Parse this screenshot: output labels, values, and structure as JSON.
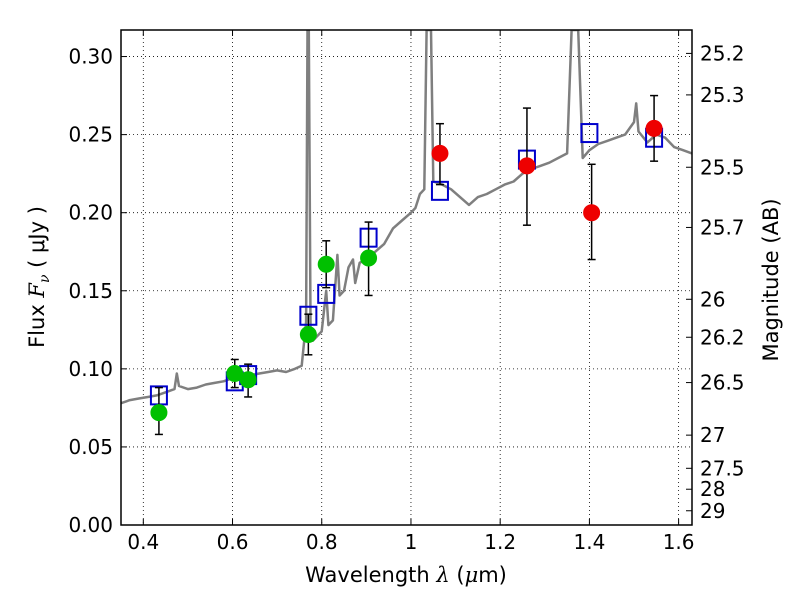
{
  "chart_data": {
    "type": "scatter",
    "xlabel": {
      "prefix": "Wavelength ",
      "var": "λ",
      "unit_open": " (",
      "unit_mu": "μ",
      "unit_rest": "m)"
    },
    "ylabel": {
      "prefix": "Flux ",
      "var": "F",
      "sub": "ν",
      "unit": " ( μJy )"
    },
    "y2label": "Magnitude (AB)",
    "xlim": [
      0.35,
      1.63
    ],
    "ylim": [
      0.0,
      0.317
    ],
    "grid": true,
    "x_ticks": [
      {
        "value": 0.4,
        "label": "0.4"
      },
      {
        "value": 0.6,
        "label": "0.6"
      },
      {
        "value": 0.8,
        "label": "0.8"
      },
      {
        "value": 1.0,
        "label": "1"
      },
      {
        "value": 1.2,
        "label": "1.2"
      },
      {
        "value": 1.4,
        "label": "1.4"
      },
      {
        "value": 1.6,
        "label": "1.6"
      }
    ],
    "y_ticks": [
      {
        "value": 0.0,
        "label": "0.00"
      },
      {
        "value": 0.05,
        "label": "0.05"
      },
      {
        "value": 0.1,
        "label": "0.10"
      },
      {
        "value": 0.15,
        "label": "0.15"
      },
      {
        "value": 0.2,
        "label": "0.20"
      },
      {
        "value": 0.25,
        "label": "0.25"
      },
      {
        "value": 0.3,
        "label": "0.30"
      }
    ],
    "mag_ticks": [
      {
        "mag": 25.2,
        "label": "25.2"
      },
      {
        "mag": 25.3,
        "label": "25.3"
      },
      {
        "mag": 25.5,
        "label": "25.5"
      },
      {
        "mag": 25.7,
        "label": "25.7"
      },
      {
        "mag": 26,
        "label": "26"
      },
      {
        "mag": 26.2,
        "label": "26.2"
      },
      {
        "mag": 26.5,
        "label": "26.5"
      },
      {
        "mag": 27,
        "label": "27"
      },
      {
        "mag": 27.5,
        "label": "27.5"
      },
      {
        "mag": 28,
        "label": "28"
      },
      {
        "mag": 29,
        "label": "29"
      }
    ],
    "series": [
      {
        "kind": "line",
        "color": "#7f7f7f",
        "points": [
          [
            0.35,
            0.078
          ],
          [
            0.37,
            0.08
          ],
          [
            0.39,
            0.081
          ],
          [
            0.41,
            0.082
          ],
          [
            0.43,
            0.083
          ],
          [
            0.45,
            0.085
          ],
          [
            0.47,
            0.087
          ],
          [
            0.475,
            0.097
          ],
          [
            0.48,
            0.089
          ],
          [
            0.5,
            0.087
          ],
          [
            0.52,
            0.088
          ],
          [
            0.54,
            0.09
          ],
          [
            0.56,
            0.091
          ],
          [
            0.58,
            0.092
          ],
          [
            0.6,
            0.094
          ],
          [
            0.62,
            0.095
          ],
          [
            0.64,
            0.096
          ],
          [
            0.66,
            0.097
          ],
          [
            0.68,
            0.098
          ],
          [
            0.7,
            0.099
          ],
          [
            0.72,
            0.098
          ],
          [
            0.74,
            0.1
          ],
          [
            0.755,
            0.102
          ],
          [
            0.765,
            0.13
          ],
          [
            0.768,
            0.317
          ],
          [
            0.771,
            0.317
          ],
          [
            0.775,
            0.12
          ],
          [
            0.78,
            0.118
          ],
          [
            0.8,
            0.124
          ],
          [
            0.81,
            0.15
          ],
          [
            0.815,
            0.128
          ],
          [
            0.825,
            0.131
          ],
          [
            0.835,
            0.173
          ],
          [
            0.84,
            0.147
          ],
          [
            0.85,
            0.15
          ],
          [
            0.86,
            0.165
          ],
          [
            0.87,
            0.17
          ],
          [
            0.875,
            0.155
          ],
          [
            0.885,
            0.168
          ],
          [
            0.9,
            0.17
          ],
          [
            0.92,
            0.175
          ],
          [
            0.94,
            0.18
          ],
          [
            0.96,
            0.19
          ],
          [
            0.98,
            0.195
          ],
          [
            1.0,
            0.2
          ],
          [
            1.01,
            0.203
          ],
          [
            1.02,
            0.212
          ],
          [
            1.03,
            0.215
          ],
          [
            1.035,
            0.317
          ],
          [
            1.045,
            0.317
          ],
          [
            1.05,
            0.22
          ],
          [
            1.07,
            0.218
          ],
          [
            1.09,
            0.215
          ],
          [
            1.11,
            0.21
          ],
          [
            1.13,
            0.205
          ],
          [
            1.15,
            0.21
          ],
          [
            1.17,
            0.212
          ],
          [
            1.19,
            0.215
          ],
          [
            1.21,
            0.218
          ],
          [
            1.23,
            0.22
          ],
          [
            1.25,
            0.225
          ],
          [
            1.27,
            0.228
          ],
          [
            1.29,
            0.23
          ],
          [
            1.31,
            0.232
          ],
          [
            1.33,
            0.235
          ],
          [
            1.35,
            0.238
          ],
          [
            1.36,
            0.317
          ],
          [
            1.375,
            0.317
          ],
          [
            1.385,
            0.235
          ],
          [
            1.4,
            0.24
          ],
          [
            1.42,
            0.244
          ],
          [
            1.44,
            0.246
          ],
          [
            1.46,
            0.248
          ],
          [
            1.48,
            0.25
          ],
          [
            1.5,
            0.258
          ],
          [
            1.505,
            0.27
          ],
          [
            1.51,
            0.252
          ],
          [
            1.53,
            0.245
          ],
          [
            1.55,
            0.25
          ],
          [
            1.57,
            0.248
          ],
          [
            1.59,
            0.242
          ],
          [
            1.61,
            0.24
          ],
          [
            1.63,
            0.238
          ]
        ]
      },
      {
        "kind": "open-square",
        "color": "#0000cc",
        "points": [
          [
            0.435,
            0.083
          ],
          [
            0.605,
            0.092
          ],
          [
            0.635,
            0.096
          ],
          [
            0.77,
            0.134
          ],
          [
            0.81,
            0.148
          ],
          [
            0.905,
            0.184
          ],
          [
            1.065,
            0.214
          ],
          [
            1.26,
            0.234
          ],
          [
            1.4,
            0.251
          ],
          [
            1.545,
            0.248
          ]
        ]
      },
      {
        "kind": "filled-circle",
        "color": "#00c000",
        "points": [
          {
            "x": 0.435,
            "y": 0.072,
            "lo": 0.058,
            "hi": 0.088
          },
          {
            "x": 0.605,
            "y": 0.097,
            "lo": 0.088,
            "hi": 0.106
          },
          {
            "x": 0.635,
            "y": 0.093,
            "lo": 0.082,
            "hi": 0.103
          },
          {
            "x": 0.77,
            "y": 0.122,
            "lo": 0.109,
            "hi": 0.135
          },
          {
            "x": 0.81,
            "y": 0.167,
            "lo": 0.152,
            "hi": 0.182
          },
          {
            "x": 0.905,
            "y": 0.171,
            "lo": 0.147,
            "hi": 0.194
          }
        ]
      },
      {
        "kind": "filled-circle",
        "color": "#ee0000",
        "points": [
          {
            "x": 1.065,
            "y": 0.238,
            "lo": 0.218,
            "hi": 0.257
          },
          {
            "x": 1.26,
            "y": 0.23,
            "lo": 0.192,
            "hi": 0.267
          },
          {
            "x": 1.405,
            "y": 0.2,
            "lo": 0.17,
            "hi": 0.231
          },
          {
            "x": 1.545,
            "y": 0.254,
            "lo": 0.233,
            "hi": 0.275
          }
        ]
      }
    ]
  }
}
